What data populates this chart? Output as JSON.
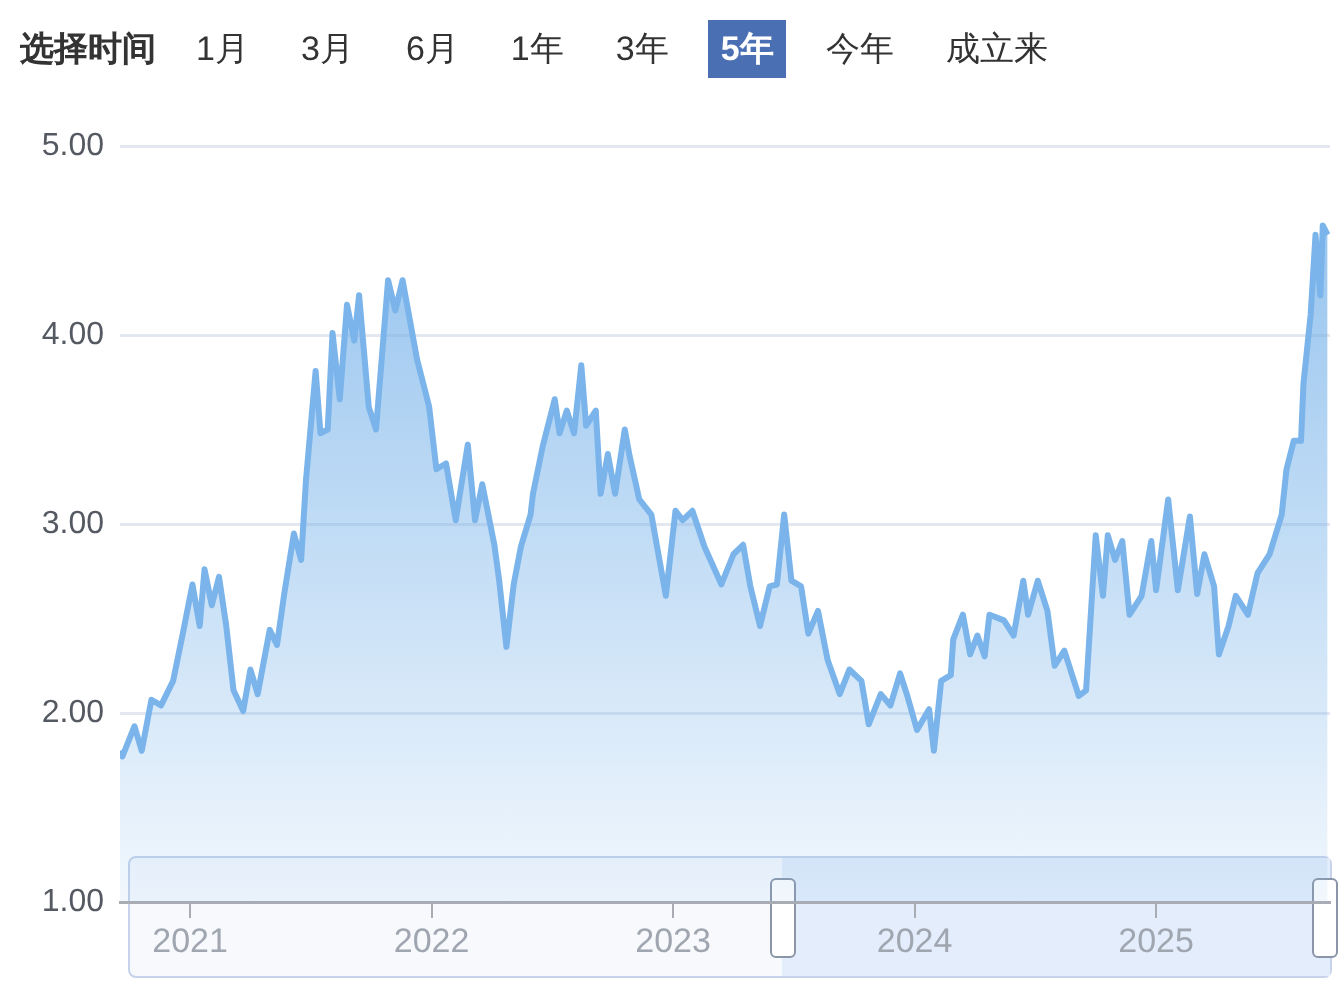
{
  "chart_data": {
    "type": "area",
    "annotations": [
      "选择时间",
      "1月",
      "3月",
      "6月",
      "1年",
      "3年",
      "5年",
      "今年",
      "成立来"
    ],
    "x": [
      2020.71,
      2020.72,
      2020.77,
      2020.8,
      2020.84,
      2020.88,
      2020.93,
      2020.97,
      2021.01,
      2021.04,
      2021.06,
      2021.09,
      2021.12,
      2021.15,
      2021.18,
      2021.22,
      2021.25,
      2021.28,
      2021.33,
      2021.36,
      2021.39,
      2021.43,
      2021.46,
      2021.48,
      2021.52,
      2021.54,
      2021.57,
      2021.59,
      2021.62,
      2021.65,
      2021.68,
      2021.7,
      2021.74,
      2021.77,
      2021.82,
      2021.85,
      2021.88,
      2021.91,
      2021.94,
      2021.99,
      2022.02,
      2022.06,
      2022.1,
      2022.15,
      2022.18,
      2022.21,
      2022.26,
      2022.28,
      2022.31,
      2022.34,
      2022.37,
      2022.41,
      2022.42,
      2022.46,
      2022.51,
      2022.53,
      2022.56,
      2022.59,
      2022.62,
      2022.64,
      2022.68,
      2022.7,
      2022.73,
      2022.76,
      2022.8,
      2022.82,
      2022.86,
      2022.91,
      2022.97,
      2023.01,
      2023.04,
      2023.08,
      2023.13,
      2023.2,
      2023.25,
      2023.29,
      2023.32,
      2023.36,
      2023.4,
      2023.43,
      2023.46,
      2023.49,
      2023.53,
      2023.56,
      2023.6,
      2023.64,
      2023.69,
      2023.73,
      2023.78,
      2023.81,
      2023.86,
      2023.9,
      2023.94,
      2023.97,
      2024.01,
      2024.06,
      2024.08,
      2024.11,
      2024.15,
      2024.16,
      2024.2,
      2024.23,
      2024.26,
      2024.29,
      2024.31,
      2024.37,
      2024.41,
      2024.45,
      2024.47,
      2024.51,
      2024.55,
      2024.58,
      2024.62,
      2024.68,
      2024.71,
      2024.75,
      2024.78,
      2024.8,
      2024.83,
      2024.86,
      2024.89,
      2024.94,
      2024.98,
      2025.0,
      2025.05,
      2025.09,
      2025.14,
      2025.17,
      2025.2,
      2025.24,
      2025.26,
      2025.3,
      2025.33,
      2025.38,
      2025.42,
      2025.47,
      2025.52,
      2025.54,
      2025.57,
      2025.6,
      2025.61,
      2025.64,
      2025.66,
      2025.68,
      2025.69,
      2025.71
    ],
    "values": [
      1.8,
      1.77,
      1.93,
      1.8,
      2.07,
      2.04,
      2.17,
      2.42,
      2.68,
      2.46,
      2.76,
      2.57,
      2.72,
      2.46,
      2.12,
      2.01,
      2.23,
      2.1,
      2.44,
      2.36,
      2.63,
      2.95,
      2.81,
      3.23,
      3.81,
      3.48,
      3.5,
      4.01,
      3.66,
      4.16,
      3.97,
      4.21,
      3.62,
      3.5,
      4.29,
      4.13,
      4.29,
      4.08,
      3.87,
      3.62,
      3.29,
      3.32,
      3.02,
      3.42,
      3.02,
      3.21,
      2.89,
      2.7,
      2.35,
      2.68,
      2.88,
      3.05,
      3.16,
      3.41,
      3.66,
      3.48,
      3.6,
      3.48,
      3.84,
      3.52,
      3.6,
      3.16,
      3.37,
      3.16,
      3.5,
      3.36,
      3.13,
      3.05,
      2.62,
      3.07,
      3.02,
      3.07,
      2.88,
      2.68,
      2.84,
      2.89,
      2.67,
      2.46,
      2.67,
      2.68,
      3.05,
      2.7,
      2.67,
      2.42,
      2.54,
      2.28,
      2.1,
      2.23,
      2.17,
      1.94,
      2.1,
      2.04,
      2.21,
      2.09,
      1.91,
      2.02,
      1.8,
      2.17,
      2.2,
      2.39,
      2.52,
      2.31,
      2.41,
      2.3,
      2.52,
      2.49,
      2.41,
      2.7,
      2.52,
      2.7,
      2.54,
      2.25,
      2.33,
      2.09,
      2.12,
      2.94,
      2.62,
      2.94,
      2.81,
      2.91,
      2.52,
      2.62,
      2.91,
      2.65,
      3.13,
      2.65,
      3.04,
      2.63,
      2.84,
      2.67,
      2.31,
      2.46,
      2.62,
      2.52,
      2.74,
      2.84,
      3.05,
      3.29,
      3.44,
      3.44,
      3.74,
      4.11,
      4.53,
      4.21,
      4.58,
      4.53
    ],
    "color": "#7ab4ea",
    "xlim": [
      2020.71,
      2025.72
    ],
    "xticks": [
      2021,
      2022,
      2023,
      2024,
      2025
    ],
    "ylim": [
      1,
      5
    ],
    "yticks": [
      {
        "value": 1,
        "label": "1.00"
      },
      {
        "value": 2,
        "label": "2.00"
      },
      {
        "value": 3,
        "label": "3.00"
      },
      {
        "value": 4,
        "label": "4.00"
      },
      {
        "value": 5,
        "label": "5.00"
      }
    ],
    "grid": "y",
    "legend": false,
    "marker": "none",
    "line_style": "solid"
  }
}
